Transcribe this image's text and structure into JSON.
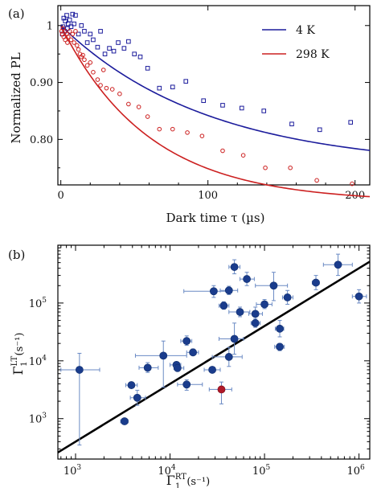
{
  "chart_data": [
    {
      "panel_label": "(a)",
      "type": "scatter",
      "xlabel": "Dark time τ (µs)",
      "ylabel": "Normalized PL",
      "xlim": [
        -2,
        210
      ],
      "ylim": [
        0.72,
        1.035
      ],
      "xticks": [
        0,
        100,
        200
      ],
      "yticks": [
        0.8,
        0.9,
        1
      ],
      "ytick_labels": [
        "0.80",
        "0.90",
        "1"
      ],
      "legend_position": "top-right",
      "series": [
        {
          "name": "4 K",
          "color": "#1c1c9c",
          "marker": "square",
          "fit": {
            "a": 0.25,
            "tau": 100,
            "c": 0.75
          },
          "points": [
            [
              1,
              0.985
            ],
            [
              1.5,
              0.998
            ],
            [
              2,
              1.013
            ],
            [
              2.5,
              0.99
            ],
            [
              3,
              1.008
            ],
            [
              4,
              1.018
            ],
            [
              4.5,
              0.995
            ],
            [
              5,
              1.003
            ],
            [
              6,
              1.01
            ],
            [
              7,
              0.998
            ],
            [
              8,
              1.02
            ],
            [
              9,
              1.003
            ],
            [
              10,
              1.018
            ],
            [
              12,
              0.985
            ],
            [
              14,
              1.0
            ],
            [
              16,
              0.99
            ],
            [
              18,
              0.97
            ],
            [
              20,
              0.985
            ],
            [
              22,
              0.975
            ],
            [
              25,
              0.962
            ],
            [
              27,
              0.99
            ],
            [
              30,
              0.95
            ],
            [
              33,
              0.96
            ],
            [
              36,
              0.955
            ],
            [
              39,
              0.97
            ],
            [
              43,
              0.96
            ],
            [
              46,
              0.972
            ],
            [
              50,
              0.95
            ],
            [
              54,
              0.945
            ],
            [
              59,
              0.925
            ],
            [
              67,
              0.89
            ],
            [
              76,
              0.892
            ],
            [
              85,
              0.902
            ],
            [
              97,
              0.868
            ],
            [
              110,
              0.86
            ],
            [
              123,
              0.855
            ],
            [
              138,
              0.85
            ],
            [
              157,
              0.827
            ],
            [
              176,
              0.817
            ],
            [
              197,
              0.83
            ]
          ]
        },
        {
          "name": "298 K",
          "color": "#cc2020",
          "marker": "circle",
          "fit": {
            "a": 0.31,
            "tau": 60,
            "c": 0.69
          },
          "points": [
            [
              0.5,
              0.99
            ],
            [
              1,
              0.985
            ],
            [
              1.5,
              0.995
            ],
            [
              2,
              0.98
            ],
            [
              2.5,
              0.99
            ],
            [
              3,
              0.975
            ],
            [
              4,
              0.985
            ],
            [
              4.5,
              0.97
            ],
            [
              5,
              0.98
            ],
            [
              6,
              0.99
            ],
            [
              7,
              0.975
            ],
            [
              8,
              0.985
            ],
            [
              9,
              0.97
            ],
            [
              10,
              0.99
            ],
            [
              11,
              0.965
            ],
            [
              12,
              0.958
            ],
            [
              13,
              0.95
            ],
            [
              14,
              0.945
            ],
            [
              15,
              0.948
            ],
            [
              16,
              0.94
            ],
            [
              18,
              0.93
            ],
            [
              20,
              0.935
            ],
            [
              22,
              0.918
            ],
            [
              25,
              0.905
            ],
            [
              27,
              0.895
            ],
            [
              29,
              0.922
            ],
            [
              31,
              0.89
            ],
            [
              35,
              0.888
            ],
            [
              40,
              0.88
            ],
            [
              46,
              0.862
            ],
            [
              53,
              0.857
            ],
            [
              59,
              0.84
            ],
            [
              67,
              0.818
            ],
            [
              76,
              0.818
            ],
            [
              86,
              0.812
            ],
            [
              96,
              0.806
            ],
            [
              110,
              0.78
            ],
            [
              124,
              0.772
            ],
            [
              139,
              0.75
            ],
            [
              156,
              0.75
            ],
            [
              174,
              0.728
            ],
            [
              198,
              0.722
            ]
          ]
        }
      ]
    },
    {
      "panel_label": "(b)",
      "type": "scatter",
      "x_scale": "log",
      "y_scale": "log",
      "xlabel_main": "Γ",
      "xlabel_sub": "1",
      "xlabel_sup": "RT",
      "xlabel_unit": "(s⁻¹)",
      "ylabel_main": "Γ",
      "ylabel_sub": "1",
      "ylabel_sup": "LT",
      "ylabel_unit": "(s⁻¹)",
      "xlim": [
        650,
        1300000
      ],
      "ylim": [
        200,
        1000000
      ],
      "xticks": [
        {
          "value": 1000,
          "base": "10",
          "exp": "3"
        },
        {
          "value": 10000,
          "base": "10",
          "exp": "4"
        },
        {
          "value": 100000,
          "base": "10",
          "exp": "5"
        },
        {
          "value": 1000000,
          "base": "10",
          "exp": "6"
        }
      ],
      "yticks": [
        {
          "value": 1000,
          "base": "10",
          "exp": "3"
        },
        {
          "value": 10000,
          "base": "10",
          "exp": "4"
        },
        {
          "value": 100000,
          "base": "10",
          "exp": "5"
        }
      ],
      "line": {
        "slope": 1.0,
        "intercept_factor": 0.4,
        "color": "#000000"
      },
      "point_color": "#1a3c8c",
      "error_color": "#6a8ac4",
      "highlight_color": "#b01828",
      "points": [
        {
          "x": 1100,
          "y": 7000,
          "xerr": [
            700,
            1800
          ],
          "yerr": [
            350,
            13500
          ]
        },
        {
          "x": 3300,
          "y": 900,
          "xerr": [
            3000,
            3600
          ],
          "yerr": [
            800,
            1000
          ]
        },
        {
          "x": 3900,
          "y": 3800,
          "xerr": [
            3400,
            4500
          ],
          "yerr": [
            3400,
            4200
          ]
        },
        {
          "x": 4500,
          "y": 2300,
          "xerr": [
            3800,
            5500
          ],
          "yerr": [
            1700,
            3100
          ]
        },
        {
          "x": 5800,
          "y": 7600,
          "xerr": [
            4700,
            7500
          ],
          "yerr": [
            6300,
            9300
          ]
        },
        {
          "x": 8500,
          "y": 12300,
          "xerr": [
            4300,
            15000
          ],
          "yerr": [
            3500,
            22000
          ]
        },
        {
          "x": 11700,
          "y": 8500,
          "xerr": [
            10000,
            13000
          ],
          "yerr": [
            7300,
            9600
          ]
        },
        {
          "x": 12000,
          "y": 7500,
          "xerr": [
            11000,
            14000
          ],
          "yerr": [
            6600,
            8300
          ]
        },
        {
          "x": 15000,
          "y": 22000,
          "xerr": [
            13000,
            17000
          ],
          "yerr": [
            18500,
            27000
          ]
        },
        {
          "x": 15000,
          "y": 3900,
          "xerr": [
            12000,
            22000
          ],
          "yerr": [
            3100,
            4700
          ]
        },
        {
          "x": 17500,
          "y": 14000,
          "xerr": [
            15000,
            20000
          ],
          "yerr": [
            12500,
            16000
          ]
        },
        {
          "x": 28000,
          "y": 7000,
          "xerr": [
            23000,
            34000
          ],
          "yerr": [
            6200,
            7800
          ]
        },
        {
          "x": 29000,
          "y": 160000,
          "xerr": [
            14000,
            45000
          ],
          "yerr": [
            125000,
            200000
          ]
        },
        {
          "x": 37000,
          "y": 90000,
          "xerr": [
            33000,
            42000
          ],
          "yerr": [
            78000,
            105000
          ]
        },
        {
          "x": 42000,
          "y": 165000,
          "xerr": [
            34000,
            52000
          ],
          "yerr": [
            140000,
            195000
          ]
        },
        {
          "x": 42000,
          "y": 11700,
          "xerr": [
            28000,
            58000
          ],
          "yerr": [
            8000,
            17000
          ]
        },
        {
          "x": 48000,
          "y": 24000,
          "xerr": [
            33000,
            60000
          ],
          "yerr": [
            13000,
            45000
          ]
        },
        {
          "x": 48000,
          "y": 420000,
          "xerr": [
            42000,
            55000
          ],
          "yerr": [
            320000,
            560000
          ]
        },
        {
          "x": 55000,
          "y": 70000,
          "xerr": [
            42000,
            70000
          ],
          "yerr": [
            58000,
            85000
          ]
        },
        {
          "x": 65000,
          "y": 260000,
          "xerr": [
            55000,
            78000
          ],
          "yerr": [
            200000,
            340000
          ]
        },
        {
          "x": 80000,
          "y": 65000,
          "xerr": [
            68000,
            95000
          ],
          "yerr": [
            50000,
            85000
          ]
        },
        {
          "x": 80000,
          "y": 45000,
          "xerr": [
            72000,
            90000
          ],
          "yerr": [
            38000,
            53000
          ]
        },
        {
          "x": 100000,
          "y": 95000,
          "xerr": [
            82000,
            120000
          ],
          "yerr": [
            80000,
            115000
          ]
        },
        {
          "x": 125000,
          "y": 200000,
          "xerr": [
            80000,
            175000
          ],
          "yerr": [
            110000,
            340000
          ]
        },
        {
          "x": 145000,
          "y": 36000,
          "xerr": [
            130000,
            160000
          ],
          "yerr": [
            26000,
            50000
          ]
        },
        {
          "x": 145000,
          "y": 17500,
          "xerr": [
            128000,
            162000
          ],
          "yerr": [
            15000,
            20000
          ]
        },
        {
          "x": 175000,
          "y": 125000,
          "xerr": [
            155000,
            200000
          ],
          "yerr": [
            95000,
            165000
          ]
        },
        {
          "x": 350000,
          "y": 225000,
          "xerr": [
            320000,
            380000
          ],
          "yerr": [
            170000,
            300000
          ]
        },
        {
          "x": 600000,
          "y": 460000,
          "xerr": [
            420000,
            850000
          ],
          "yerr": [
            300000,
            700000
          ]
        },
        {
          "x": 1000000,
          "y": 130000,
          "xerr": [
            850000,
            1200000
          ],
          "yerr": [
            100000,
            170000
          ]
        },
        {
          "x": 35000,
          "y": 3200,
          "xerr": [
            26000,
            45000
          ],
          "yerr": [
            1800,
            4300
          ],
          "highlight": true
        }
      ]
    }
  ]
}
